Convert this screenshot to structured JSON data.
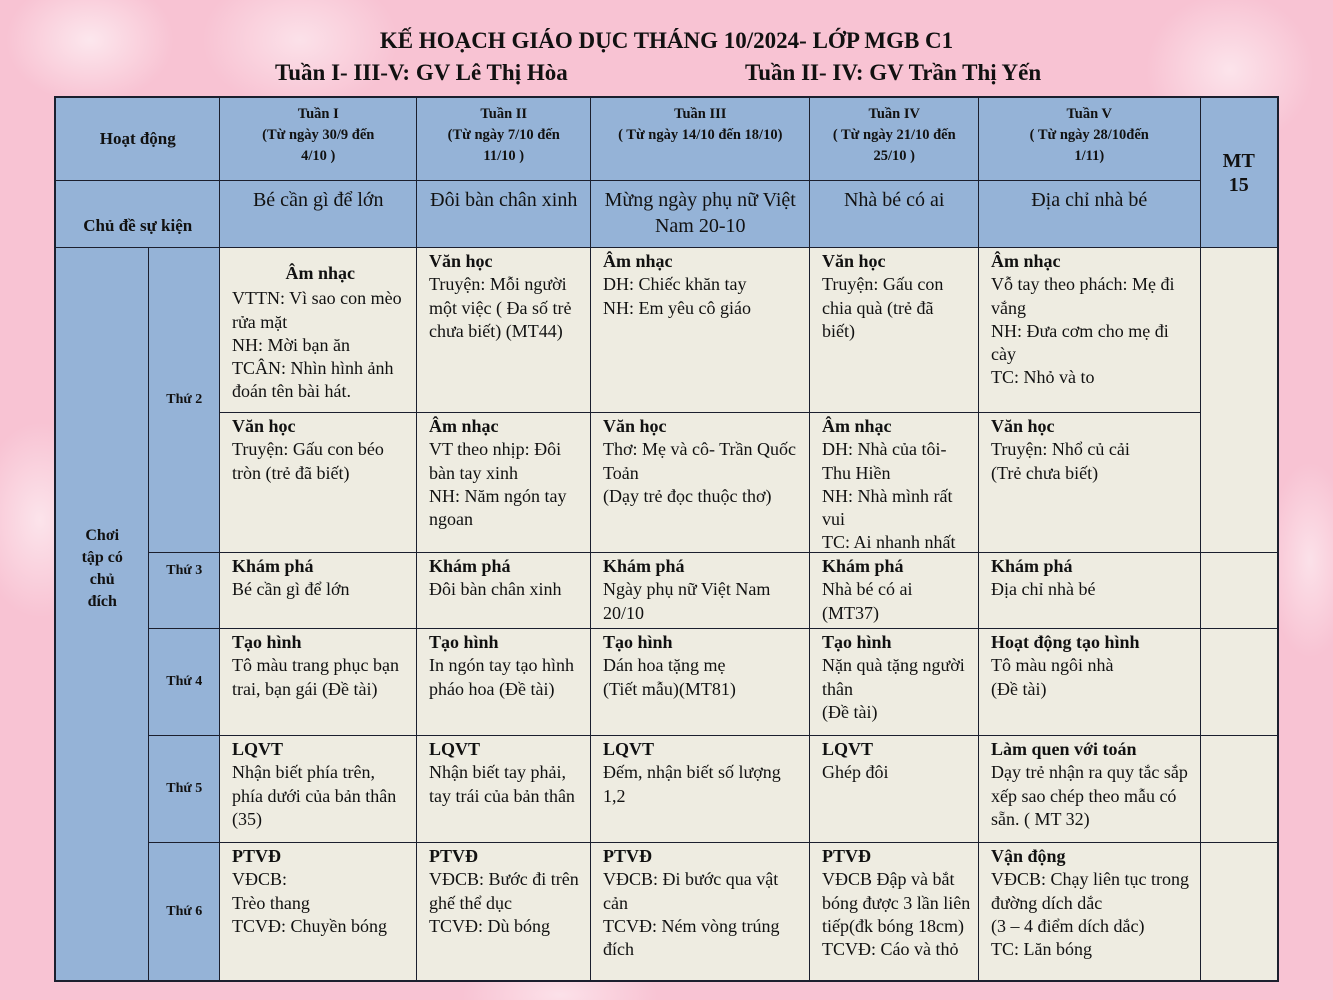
{
  "header": {
    "title": "KẾ HOẠCH GIÁO DỤC THÁNG 10/2024- LỚP MGB C1",
    "subtitle_left": "Tuần I- III-V: GV Lê Thị Hòa",
    "subtitle_right": "Tuần II- IV: GV Trần Thị Yến"
  },
  "table": {
    "corner_label": "Hoạt động",
    "theme_label": "Chủ đề sự kiện",
    "mt_label": "MT\n15",
    "section_label": "Chơi\ntập có\nchủ\nđích",
    "weeks": [
      {
        "name": "Tuần I",
        "dates": "(Từ ngày 30/9 đến\n4/10 )",
        "theme": "Bé cần gì để lớn"
      },
      {
        "name": "Tuần II",
        "dates": "(Từ ngày 7/10 đến\n11/10 )",
        "theme": "Đôi bàn chân xinh"
      },
      {
        "name": "Tuần III",
        "dates": "( Từ ngày 14/10 đến 18/10)",
        "theme": "Mừng ngày phụ nữ Việt Nam 20-10"
      },
      {
        "name": "Tuần IV",
        "dates": "( Từ ngày 21/10 đến\n25/10 )",
        "theme": "Nhà bé có ai"
      },
      {
        "name": "Tuần V",
        "dates": "( Từ ngày 28/10đến\n1/11)",
        "theme": "Địa chỉ nhà bé"
      }
    ],
    "days": [
      "Thứ 2",
      "Thứ 3",
      "Thứ 4",
      "Thứ 5",
      "Thứ 6"
    ],
    "rows": [
      [
        {
          "title": "Âm nhạc",
          "body": "VTTN: Vì sao con mèo rửa mặt\n NH: Mời bạn ăn\nTCÂN: Nhìn hình ảnh đoán tên bài hát."
        },
        {
          "title": "Văn học",
          "body": "Truyện: Mỗi người một việc ( Đa số trẻ chưa biết) (MT44)"
        },
        {
          "title": "Âm nhạc",
          "body": "DH: Chiếc khăn  tay\nNH: Em yêu cô giáo"
        },
        {
          "title": "Văn học",
          "body": "Truyện: Gấu con chia quà (trẻ đã biết)"
        },
        {
          "title": "Âm nhạc",
          "body": "Vỗ tay theo phách: Mẹ đi vắng\nNH: Đưa cơm cho mẹ đi cày\nTC: Nhỏ và to"
        }
      ],
      [
        {
          "title": "Văn học",
          "body": "Truyện: Gấu con béo tròn (trẻ đã biết)"
        },
        {
          "title": "Âm nhạc",
          "body": "VT theo nhịp: Đôi bàn tay xinh\nNH: Năm ngón tay ngoan"
        },
        {
          "title": "Văn học",
          "body": "Thơ: Mẹ và cô- Trần Quốc Toản\n(Dạy trẻ đọc thuộc thơ)"
        },
        {
          "title": "Âm nhạc",
          "body": "DH: Nhà của tôi- Thu Hiền\n NH: Nhà mình rất vui\nTC: Ai nhanh nhất"
        },
        {
          "title": "Văn học",
          "body": "Truyện: Nhổ củ cải\n(Trẻ chưa biết)"
        }
      ],
      [
        {
          "title": "Khám phá",
          "body": "Bé cần gì để lớn"
        },
        {
          "title": "Khám phá",
          "body": "Đôi bàn chân xinh"
        },
        {
          "title": "Khám phá",
          "body": "Ngày phụ nữ Việt Nam 20/10"
        },
        {
          "title": "Khám phá",
          "body": "Nhà bé có ai\n(MT37)"
        },
        {
          "title": "Khám phá",
          "body": "Địa chỉ nhà bé"
        }
      ],
      [
        {
          "title": "Tạo hình",
          "body": "Tô màu trang phục bạn trai, bạn gái (Đề tài)"
        },
        {
          "title": "Tạo hình",
          "body": "In ngón tay tạo hình pháo hoa (Đề tài)"
        },
        {
          "title": "Tạo hình",
          "body": "Dán hoa tặng mẹ\n(Tiết mẫu)(MT81)"
        },
        {
          "title": "Tạo hình",
          "body": "Nặn quà tặng người thân\n(Đề tài)"
        },
        {
          "title": "Hoạt động tạo hình",
          "body": "Tô màu ngôi nhà\n(Đề tài)"
        }
      ],
      [
        {
          "title": "LQVT",
          "body": "Nhận biết phía trên, phía dưới của bản thân (35)"
        },
        {
          "title": "LQVT",
          "body": "Nhận biết tay phải, tay trái của bản thân"
        },
        {
          "title": "LQVT",
          "body": "Đếm, nhận biết số lượng 1,2"
        },
        {
          "title": "LQVT",
          "body": "Ghép đôi"
        },
        {
          "title": "Làm quen với toán",
          "body": "Dạy trẻ nhận ra quy tắc sắp xếp sao chép theo mẫu có sẵn. ( MT 32)"
        }
      ],
      [
        {
          "title": "PTVĐ",
          "body": "VĐCB:\nTrèo thang\nTCVĐ: Chuyền bóng"
        },
        {
          "title": "PTVĐ",
          "body": "VĐCB: Bước đi trên ghế thể dục\nTCVĐ: Dù bóng"
        },
        {
          "title": "PTVĐ",
          "body": "VĐCB: Đi bước qua vật cản\nTCVĐ: Ném vòng trúng đích"
        },
        {
          "title": "PTVĐ",
          "body": "VĐCB Đập và bắt bóng được 3 lần liên tiếp(đk bóng 18cm)\nTCVĐ: Cáo và thỏ"
        },
        {
          "title": "Vận động",
          "body": "VĐCB: Chạy liên tục trong đường dích dắc\n(3 – 4 điểm dích dắc)\nTC: Lăn bóng"
        }
      ]
    ]
  },
  "colors": {
    "background": "#f8c3d3",
    "header_cell": "#95b3d7",
    "body_cell": "#eeece1",
    "border": "#1b1f2e"
  }
}
